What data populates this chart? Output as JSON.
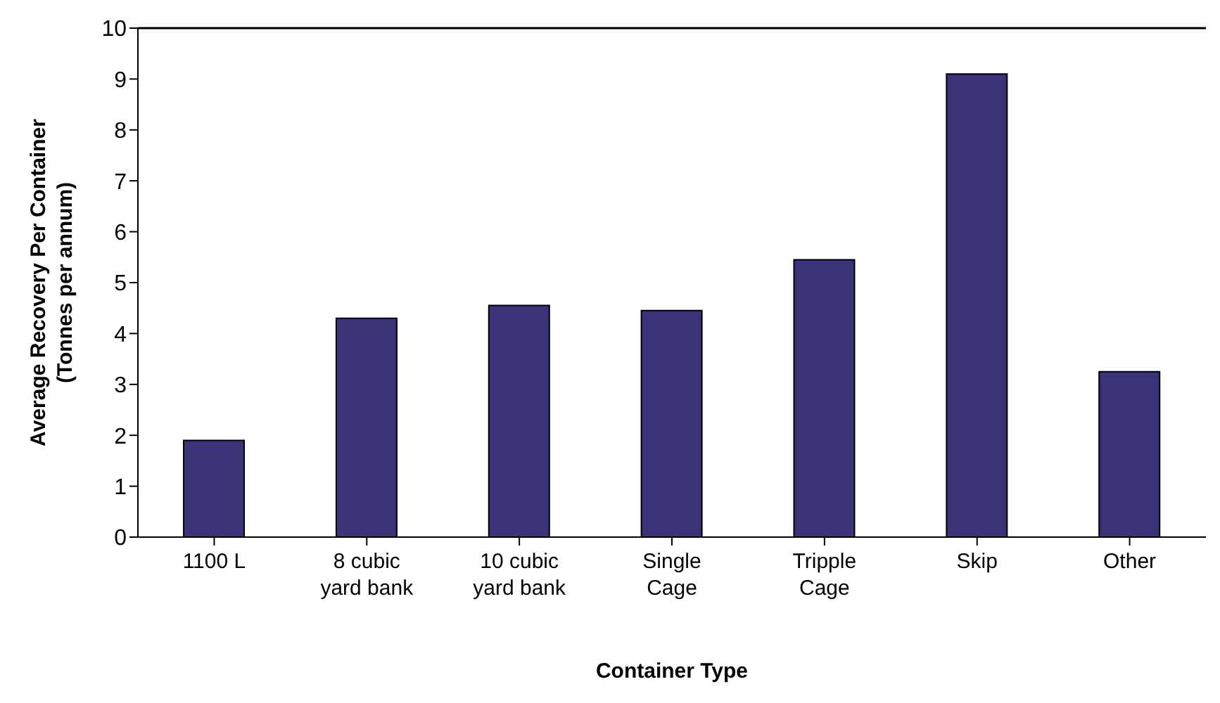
{
  "chart_data": {
    "type": "bar",
    "xlabel": "Container Type",
    "ylabel": "Average Recovery Per Container\n(Tonnes per annum)",
    "categories": [
      "1100 L",
      "8 cubic\nyard bank",
      "10 cubic\nyard bank",
      "Single\nCage",
      "Tripple\nCage",
      "Skip",
      "Other"
    ],
    "values": [
      1.9,
      4.3,
      4.55,
      4.45,
      5.45,
      9.1,
      3.25
    ],
    "color": "#3b3378",
    "ylim": [
      0,
      10
    ],
    "yticks": [
      0,
      1,
      2,
      3,
      4,
      5,
      6,
      7,
      8,
      9,
      10
    ],
    "grid": false,
    "legend": false
  }
}
